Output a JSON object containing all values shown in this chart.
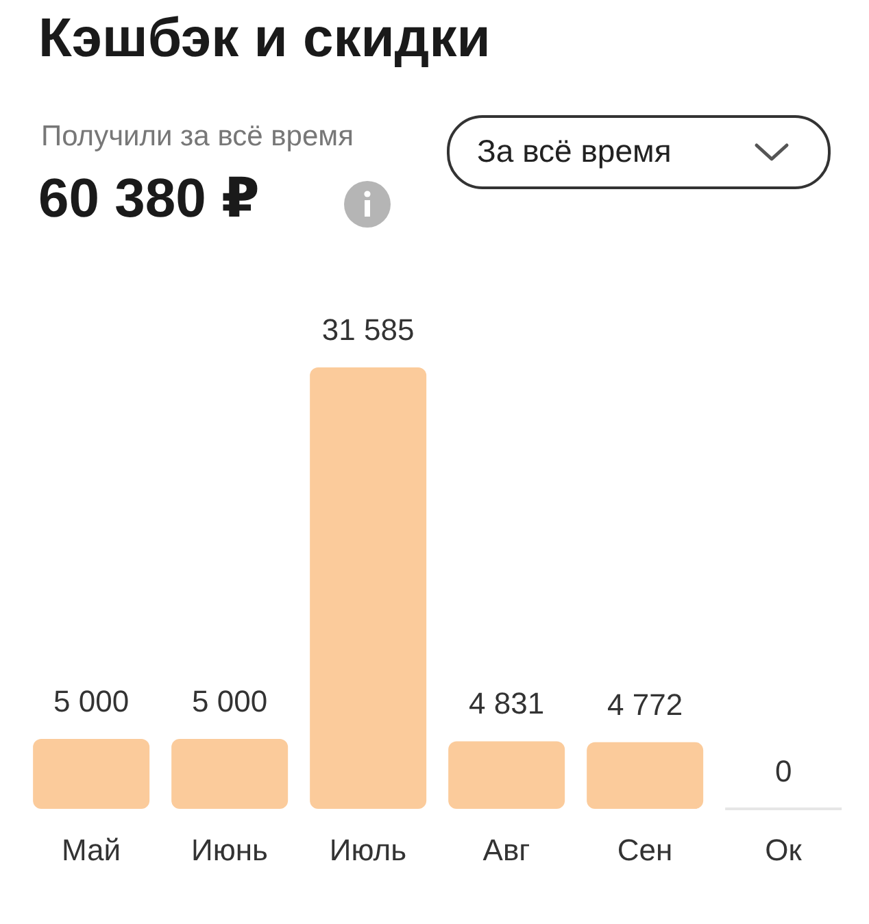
{
  "chart_data": {
    "type": "bar",
    "title": "Кэшбэк и скидки",
    "subtitle": "Получили за всё время",
    "annotations": [
      "60 380 ₽",
      "За всё время"
    ],
    "categories": [
      "Май",
      "Июнь",
      "Июль",
      "Авг",
      "Сен",
      "Ок"
    ],
    "values": [
      5000,
      5000,
      31585,
      4831,
      4772,
      0
    ],
    "colors": [
      "#fbcb9b",
      "#fbcb9b",
      "#fbcb9b",
      "#fbcb9b",
      "#fbcb9b",
      "#e6e6e6"
    ],
    "data_labels": true,
    "grid": false,
    "legend": false
  }
}
